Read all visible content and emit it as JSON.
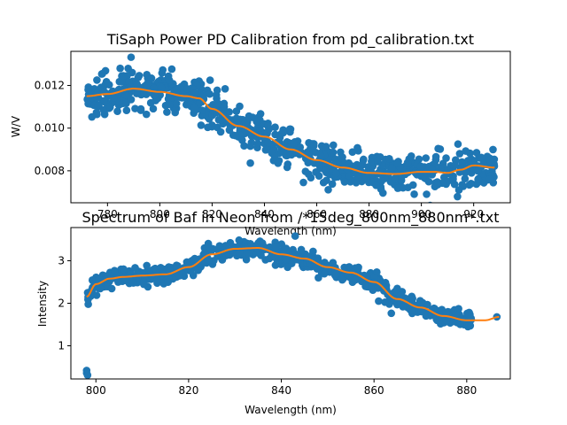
{
  "chart_data": [
    {
      "type": "scatter",
      "title": "TiSaph Power PD Calibration from pd_calibration.txt",
      "xlabel": "Wavelength (nm)",
      "ylabel": "W/V",
      "xlim": [
        766,
        934
      ],
      "ylim": [
        0.0065,
        0.0136
      ],
      "xticks": [
        780,
        800,
        820,
        840,
        860,
        880,
        900,
        920
      ],
      "yticks": [
        0.008,
        0.01,
        0.012
      ],
      "ytick_labels": [
        "0.008",
        "0.010",
        "0.012"
      ],
      "x_range": [
        772,
        928
      ],
      "n_points": 760,
      "noise": 0.00045,
      "scatter_color": "#1f77b4",
      "fit_color": "#ff7f0e",
      "fit_x": [
        772,
        780,
        790,
        800,
        810,
        815,
        820,
        830,
        840,
        850,
        860,
        870,
        880,
        890,
        900,
        905,
        910,
        915,
        920,
        928
      ],
      "fit_y": [
        0.0115,
        0.0116,
        0.01185,
        0.0117,
        0.0115,
        0.0114,
        0.0109,
        0.0101,
        0.0096,
        0.009,
        0.0085,
        0.00815,
        0.0079,
        0.00785,
        0.00795,
        0.00795,
        0.0079,
        0.00805,
        0.00825,
        0.00815
      ],
      "outliers": [
        {
          "x": 850,
          "y": 0.00995
        },
        {
          "x": 902,
          "y": 0.0069
        },
        {
          "x": 926,
          "y": 0.0076
        },
        {
          "x": 919,
          "y": 0.0074
        },
        {
          "x": 893,
          "y": 0.0072
        }
      ]
    },
    {
      "type": "scatter",
      "title": "Spectrum of Baf in Neon from /*15deg_800nm_880nm*.txt",
      "xlabel": "Wavelength (nm)",
      "ylabel": "Intensity",
      "xlim": [
        794.6,
        889.4
      ],
      "ylim": [
        0.22,
        3.78
      ],
      "xticks": [
        800,
        820,
        840,
        860,
        880
      ],
      "yticks": [
        1,
        2,
        3
      ],
      "ytick_labels": [
        "1",
        "2",
        "3"
      ],
      "x_range": [
        798,
        881
      ],
      "n_points": 720,
      "noise": 0.1,
      "scatter_color": "#1f77b4",
      "fit_color": "#ff7f0e",
      "fit_x": [
        798,
        800,
        803,
        806,
        810,
        815,
        820,
        825,
        830,
        835,
        840,
        845,
        850,
        855,
        860,
        865,
        870,
        875,
        880,
        884,
        887
      ],
      "fit_y": [
        2.15,
        2.45,
        2.58,
        2.62,
        2.65,
        2.68,
        2.85,
        3.15,
        3.28,
        3.3,
        3.15,
        3.05,
        2.85,
        2.72,
        2.5,
        2.1,
        1.9,
        1.7,
        1.6,
        1.6,
        1.68
      ],
      "outliers": [
        {
          "x": 798,
          "y": 0.42
        },
        {
          "x": 798,
          "y": 0.36
        },
        {
          "x": 798.2,
          "y": 0.31
        },
        {
          "x": 843,
          "y": 3.58
        },
        {
          "x": 848,
          "y": 2.6
        },
        {
          "x": 861,
          "y": 2.05
        },
        {
          "x": 886.5,
          "y": 1.68
        },
        {
          "x": 856,
          "y": 2.55
        }
      ]
    }
  ]
}
